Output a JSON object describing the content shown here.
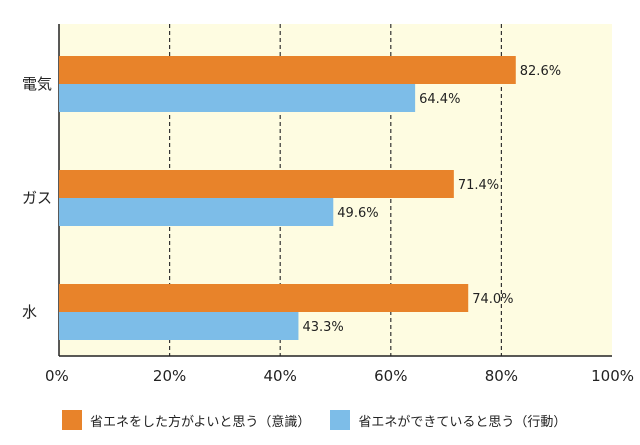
{
  "chart_data": {
    "type": "bar",
    "orientation": "horizontal",
    "categories": [
      "電気",
      "ガス",
      "水"
    ],
    "series": [
      {
        "name": "省エネをした方がよいと思う（意識）",
        "values": [
          82.6,
          71.4,
          74.0
        ],
        "labels": [
          "82.6%",
          "71.4%",
          "74.0%"
        ],
        "color": "#E8832A"
      },
      {
        "name": "省エネができていると思う（行動）",
        "values": [
          64.4,
          49.6,
          43.3
        ],
        "labels": [
          "64.4%",
          "49.6%",
          "43.3%"
        ],
        "color": "#7DBDE8"
      }
    ],
    "xlim": [
      0,
      100
    ],
    "xticks": [
      0,
      20,
      40,
      60,
      80,
      100
    ],
    "xtick_labels": [
      "0%",
      "20%",
      "40%",
      "60%",
      "80%",
      "100%"
    ],
    "grid": "vertical dashed",
    "background_color": "#FEFCE1",
    "legend_position": "bottom",
    "title": "",
    "xlabel": "",
    "ylabel": ""
  }
}
